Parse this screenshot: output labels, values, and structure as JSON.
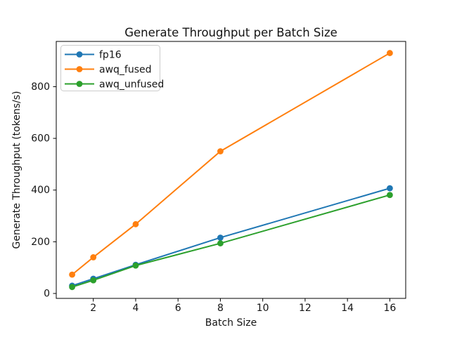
{
  "figure": {
    "title": "Generate Throughput per Batch Size",
    "xlabel": "Batch Size",
    "ylabel": "Generate Throughput (tokens/s)"
  },
  "chart_data": {
    "type": "line",
    "title": "Generate Throughput per Batch Size",
    "xlabel": "Batch Size",
    "ylabel": "Generate Throughput (tokens/s)",
    "x": [
      1,
      2,
      4,
      8,
      16
    ],
    "series": [
      {
        "name": "fp16",
        "color": "#1f77b4",
        "values": [
          30,
          57,
          111,
          216,
          407
        ]
      },
      {
        "name": "awq_fused",
        "color": "#ff7f0e",
        "values": [
          73,
          140,
          268,
          550,
          930
        ]
      },
      {
        "name": "awq_unfused",
        "color": "#2ca02c",
        "values": [
          25,
          51,
          108,
          194,
          381
        ]
      }
    ],
    "xticks": [
      2,
      4,
      6,
      8,
      10,
      12,
      14,
      16
    ],
    "yticks": [
      0,
      200,
      400,
      600,
      800
    ],
    "xlim": [
      0.25,
      16.75
    ],
    "ylim": [
      -19,
      975
    ],
    "legend_position": "upper left",
    "grid": false,
    "marker": "o",
    "background_color": "#ffffff",
    "axes_edge_color": "#000000",
    "legend_border_color": "#cccccc"
  }
}
